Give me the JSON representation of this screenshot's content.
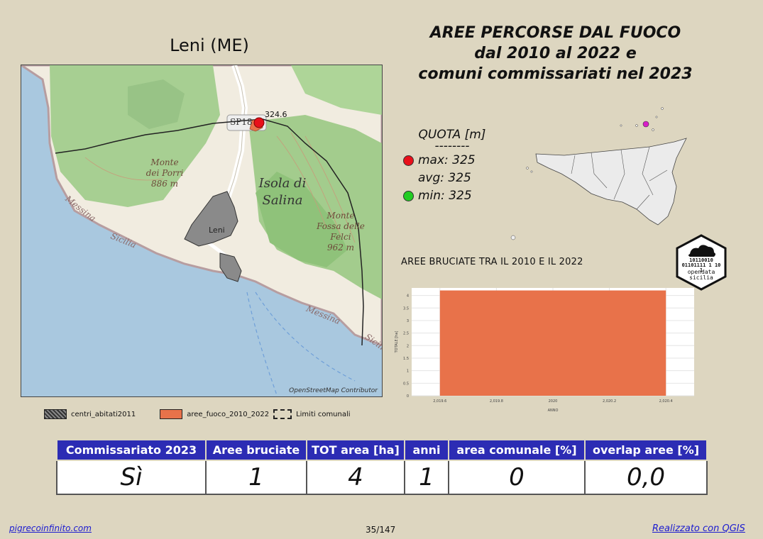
{
  "map": {
    "title": "Leni (ME)",
    "credit": "OpenStreetMap Contributor",
    "labels": {
      "road": "SP18",
      "peak_marker": "324.6",
      "porri_1": "Monte",
      "porri_2": "dei Porri",
      "porri_3": "886 m",
      "isola_1": "Isola di",
      "isola_2": "Salina",
      "fossa_1": "Monte",
      "fossa_2": "Fossa delle",
      "fossa_3": "Felci",
      "fossa_4": "962 m",
      "messina_1": "Messina",
      "sicilia_1": "Sicilia",
      "messina_2": "Messina",
      "sicilia_2": "Sicilia",
      "village": "Leni"
    }
  },
  "title": {
    "line1": "AREE PERCORSE DAL FUOCO",
    "line2": "dal 2010 al 2022 e",
    "line3": "comuni commissariati nel 2023"
  },
  "quota": {
    "title": "QUOTA [m]",
    "separator": "--------",
    "max": "max: 325",
    "avg": "avg: 325",
    "min": "min: 325"
  },
  "colors": {
    "max": "#e8101a",
    "min": "#22cc22",
    "fire": "#e8724a",
    "header": "#2c2cb4",
    "marker": "#d81ec8"
  },
  "logo": {
    "text1": "opendata",
    "text2": "sicilia",
    "bits": "10110010 01101111 1 10 1"
  },
  "chart_data": {
    "type": "bar",
    "title": "AREE BRUCIATE TRA IL 2010 E IL 2022",
    "xlabel": "ANNO",
    "ylabel": "TOTALE [ha]",
    "x": [
      2020
    ],
    "values": [
      4.2
    ],
    "xlim": [
      2019.5,
      2020.5
    ],
    "ylim": [
      0,
      4.3
    ],
    "xticks": [
      "2,019.6",
      "2,019.8",
      "2020",
      "2,020.2",
      "2,020.4"
    ],
    "yticks": [
      "0",
      "0.5",
      "1",
      "1.5",
      "2",
      "2.5",
      "3",
      "3.5",
      "4"
    ],
    "grid": true
  },
  "legend": {
    "items": [
      "centri_abitati2011",
      "aree_fuoco_2010_2022",
      "Limiti comunali"
    ]
  },
  "table": {
    "headers": [
      "Commissariato 2023",
      "Aree bruciate",
      "TOT area [ha]",
      "anni",
      "area comunale [%]",
      "overlap aree [%]"
    ],
    "values": [
      "Sì",
      "1",
      "4",
      "1",
      "0",
      "0,0"
    ]
  },
  "footer": {
    "left": "pigrecoinfinito.com",
    "page": "35/147",
    "right": "Realizzato con QGIS"
  }
}
